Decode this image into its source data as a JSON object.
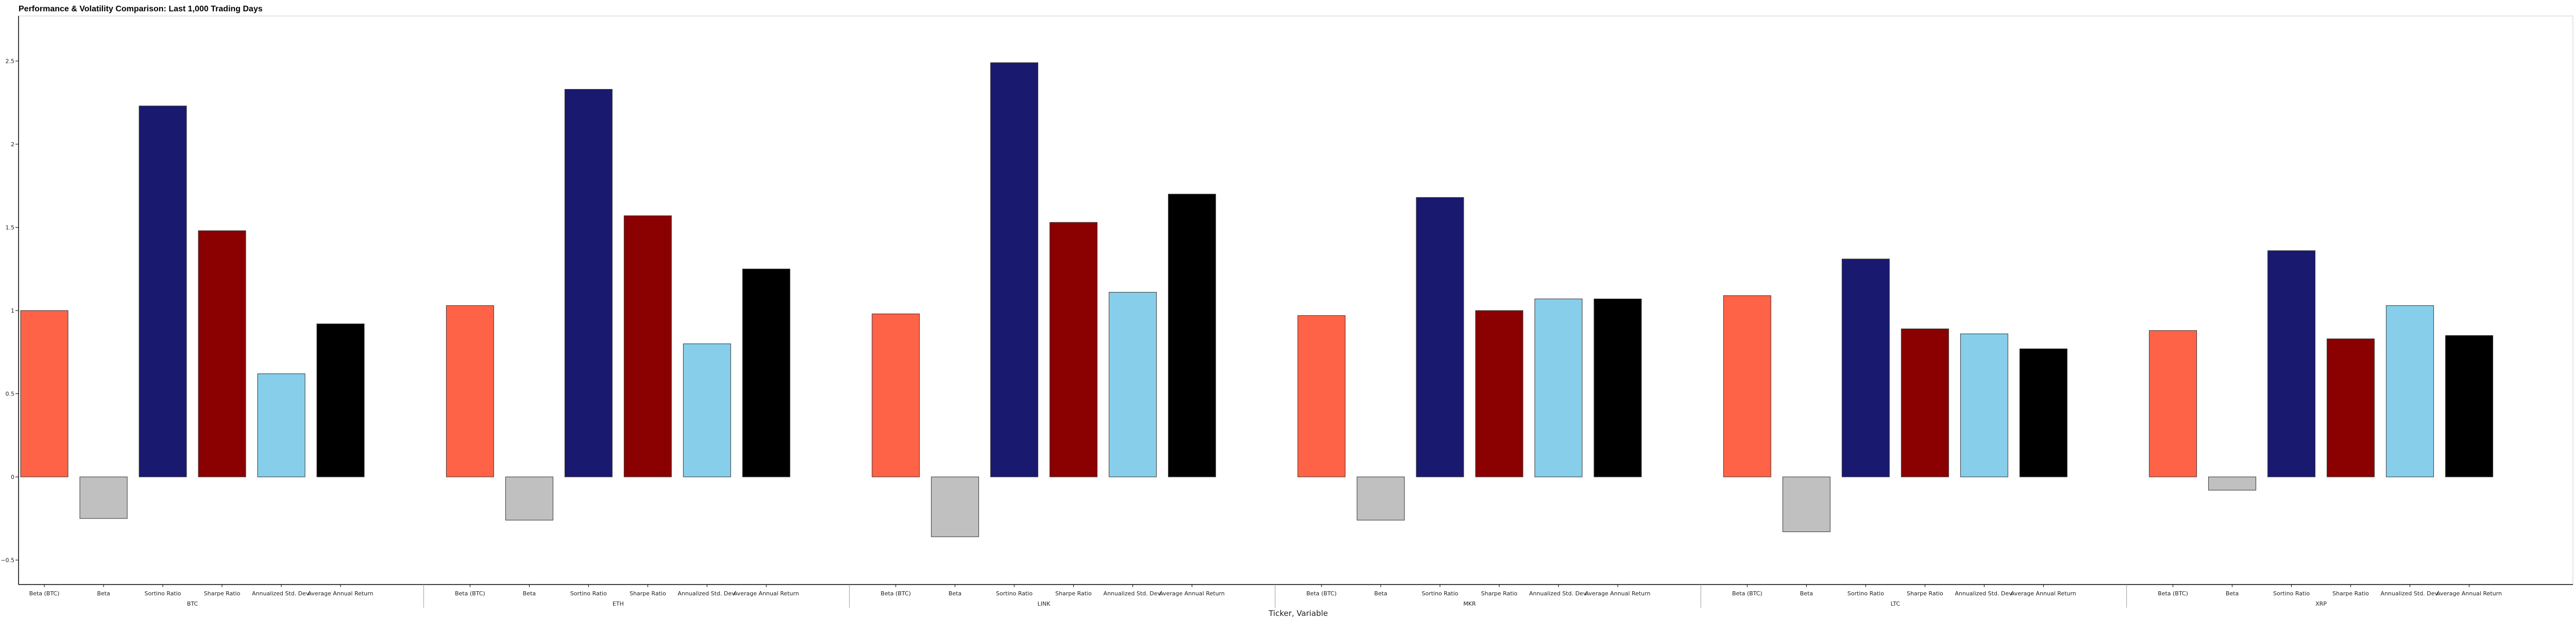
{
  "chart_data": {
    "type": "bar",
    "title": "Performance & Volatility Comparison: Last 1,000 Trading Days",
    "xlabel": "Ticker, Variable",
    "ylabel": "",
    "ylim": [
      -0.65,
      2.78
    ],
    "yticks": [
      -0.5,
      0,
      0.5,
      1,
      1.5,
      2,
      2.5
    ],
    "ytick_labels": [
      "−0.5",
      "0",
      "0.5",
      "1",
      "1.5",
      "2",
      "2.5"
    ],
    "grid": false,
    "legend": "none",
    "groups": [
      "BTC",
      "ETH",
      "LINK",
      "MKR",
      "LTC",
      "XRP"
    ],
    "categories": [
      "Beta (BTC)",
      "Beta",
      "Sortino Ratio",
      "Sharpe Ratio",
      "Annualized Std. Dev.",
      "Average Annual Return"
    ],
    "colors": [
      "#ff6347",
      "#c0c0c0",
      "#191970",
      "#8b0000",
      "#87ceeb",
      "#000000"
    ],
    "series": [
      {
        "group": "BTC",
        "values": [
          1.0,
          -0.25,
          2.23,
          1.48,
          0.62,
          0.92
        ]
      },
      {
        "group": "ETH",
        "values": [
          1.03,
          -0.26,
          2.33,
          1.57,
          0.8,
          1.25
        ]
      },
      {
        "group": "LINK",
        "values": [
          0.98,
          -0.36,
          2.49,
          1.53,
          1.11,
          1.7
        ]
      },
      {
        "group": "MKR",
        "values": [
          0.97,
          -0.26,
          1.68,
          1.0,
          1.07,
          1.07
        ]
      },
      {
        "group": "LTC",
        "values": [
          1.09,
          -0.33,
          1.31,
          0.89,
          0.86,
          0.77
        ]
      },
      {
        "group": "XRP",
        "values": [
          0.88,
          -0.08,
          1.36,
          0.83,
          1.03,
          0.85
        ]
      }
    ]
  }
}
